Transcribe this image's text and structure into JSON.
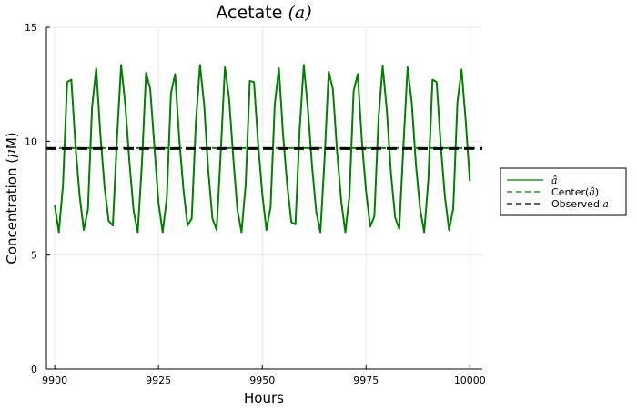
{
  "chart_data": {
    "type": "line",
    "title_main": "Acetate ",
    "title_math": "(a)",
    "xlabel": "Hours",
    "ylabel_main": "Concentration (",
    "ylabel_math": "μ",
    "ylabel_end": "M)",
    "xlim": [
      9898,
      10003
    ],
    "ylim": [
      0,
      15
    ],
    "x_ticks": [
      9900,
      9925,
      9950,
      9975,
      10000
    ],
    "x_tick_labels": [
      "9900",
      "9925",
      "9950",
      "9975",
      "10000"
    ],
    "y_ticks": [
      0,
      5,
      10,
      15
    ],
    "y_tick_labels": [
      "0",
      "5",
      "10",
      "15"
    ],
    "grid": true,
    "legend_position": "right",
    "series": [
      {
        "name": "â",
        "style": "solid",
        "color": "#008000",
        "x": [
          9900,
          9901,
          9902,
          9903,
          9904,
          9905,
          9906,
          9907,
          9908,
          9909,
          9910,
          9911,
          9912,
          9913,
          9914,
          9915,
          9916,
          9917,
          9918,
          9919,
          9920,
          9921,
          9922,
          9923,
          9924,
          9925,
          9926,
          9927,
          9928,
          9929,
          9930,
          9931,
          9932,
          9933,
          9934,
          9935,
          9936,
          9937,
          9938,
          9939,
          9940,
          9941,
          9942,
          9943,
          9944,
          9945,
          9946,
          9947,
          9948,
          9949,
          9950,
          9951,
          9952,
          9953,
          9954,
          9955,
          9956,
          9957,
          9958,
          9959,
          9960,
          9961,
          9962,
          9963,
          9964,
          9965,
          9966,
          9967,
          9968,
          9969,
          9970,
          9971,
          9972,
          9973,
          9974,
          9975,
          9976,
          9977,
          9978,
          9979,
          9980,
          9981,
          9982,
          9983,
          9984,
          9985,
          9986,
          9987,
          9988,
          9989,
          9990,
          9991,
          9992,
          9993,
          9994,
          9995,
          9996,
          9997,
          9998,
          9999,
          10000
        ],
        "values": [
          7.2,
          6.0,
          8.1,
          12.6,
          12.7,
          9.8,
          7.6,
          6.1,
          7.0,
          11.5,
          13.2,
          10.3,
          8.0,
          6.5,
          6.3,
          10.1,
          13.35,
          11.6,
          9.1,
          6.95,
          6.0,
          9.0,
          13.0,
          12.3,
          9.8,
          7.3,
          6.0,
          7.5,
          12.1,
          12.95,
          10.1,
          7.9,
          6.3,
          6.6,
          10.8,
          13.35,
          11.6,
          8.7,
          6.6,
          6.1,
          9.5,
          13.25,
          11.9,
          9.3,
          7.0,
          6.0,
          8.1,
          12.65,
          12.6,
          9.9,
          7.7,
          6.1,
          7.1,
          11.6,
          13.2,
          10.3,
          8.1,
          6.45,
          6.35,
          10.5,
          13.35,
          11.4,
          8.9,
          6.9,
          6.0,
          9.2,
          13.05,
          12.3,
          9.6,
          7.4,
          6.0,
          7.6,
          12.2,
          12.95,
          10.0,
          7.8,
          6.25,
          6.7,
          11.0,
          13.3,
          11.35,
          8.6,
          6.65,
          6.15,
          9.8,
          13.25,
          11.7,
          9.0,
          7.05,
          6.0,
          8.3,
          12.7,
          12.6,
          9.8,
          7.55,
          6.1,
          7.05,
          11.7,
          13.15,
          10.9,
          8.25
        ]
      },
      {
        "name": "Center(â)",
        "style": "dashed",
        "color": "#008000",
        "constant": 9.68
      },
      {
        "name": "Observed a",
        "style": "dashed",
        "color": "#000000",
        "constant": 9.68
      }
    ]
  },
  "legend": {
    "item1_math": "â",
    "item2_text": "Center(",
    "item2_math": "â",
    "item2_end": ")",
    "item3_text": "Observed ",
    "item3_math": "a"
  },
  "colors": {
    "series_green": "#008000",
    "observed_black": "#000000",
    "grid": "#e8e8e8",
    "axis": "#000000"
  }
}
